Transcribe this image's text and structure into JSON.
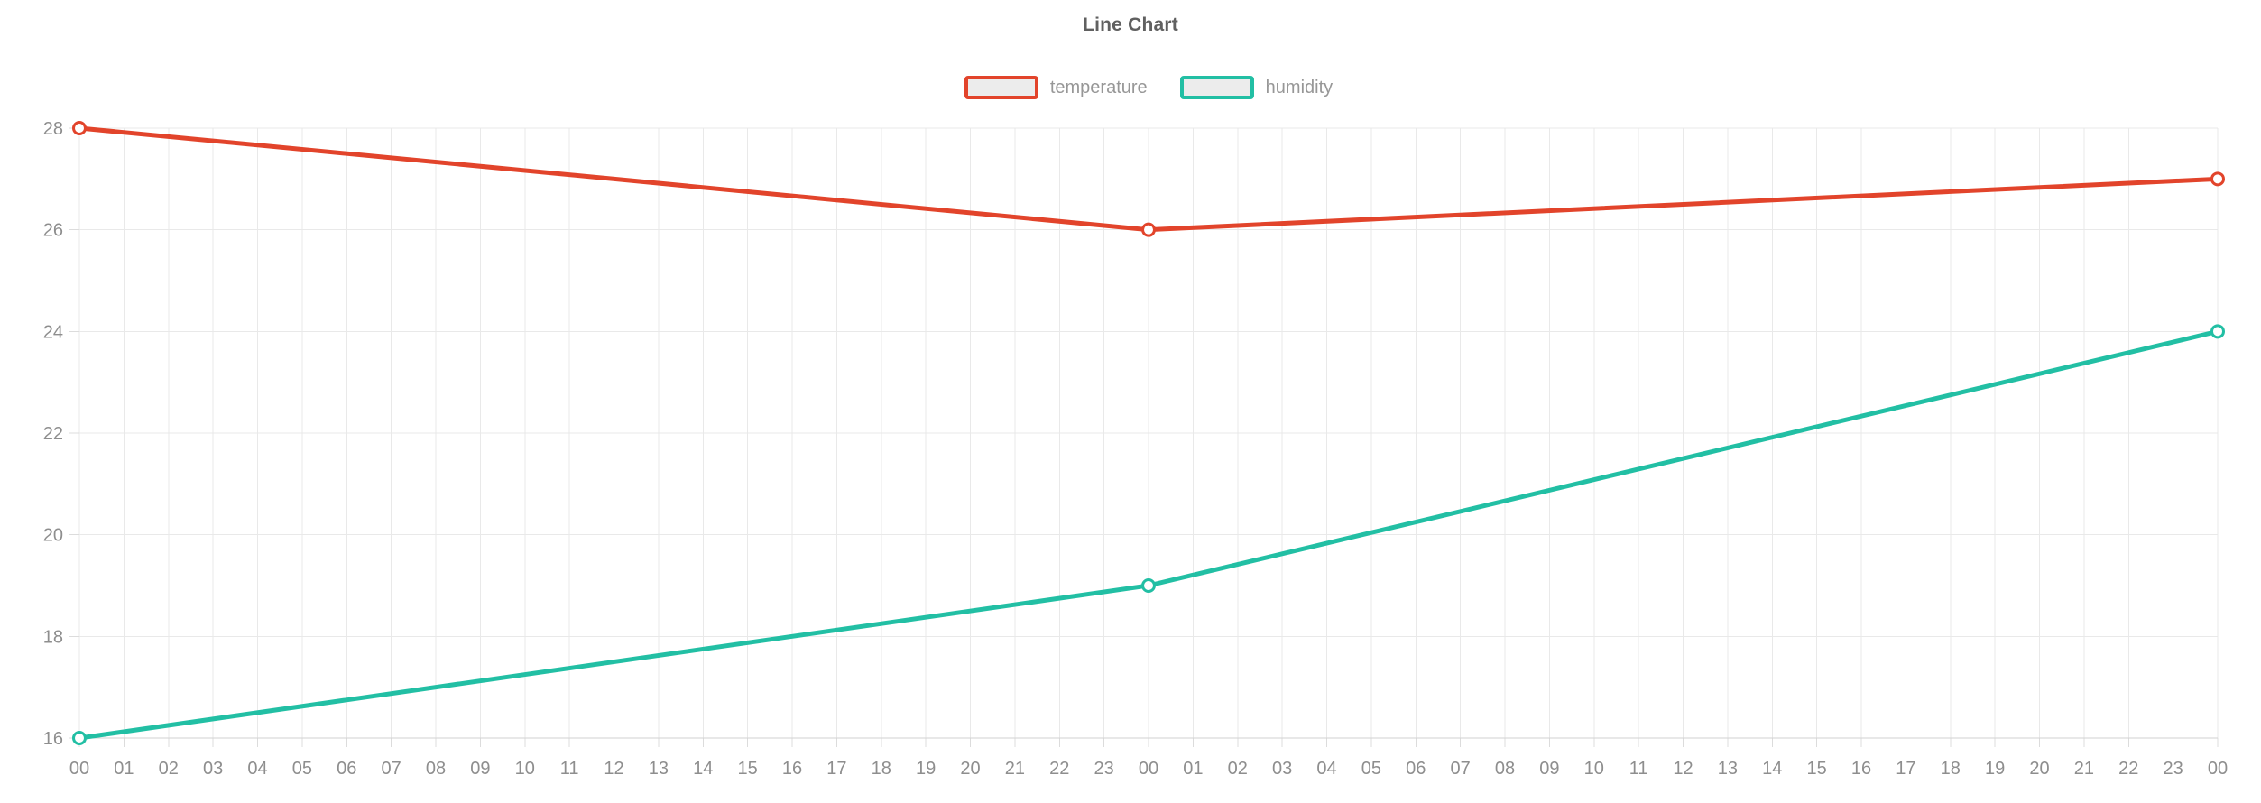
{
  "page": {
    "background": "#ffffff"
  },
  "title": "Line Chart",
  "legend": {
    "items": [
      {
        "label": "temperature",
        "color": "#e2442b"
      },
      {
        "label": "humidity",
        "color": "#22bfa4"
      }
    ]
  },
  "chart_data": {
    "type": "line",
    "title": "Line Chart",
    "x_labels": [
      "00",
      "01",
      "02",
      "03",
      "04",
      "05",
      "06",
      "07",
      "08",
      "09",
      "10",
      "11",
      "12",
      "13",
      "14",
      "15",
      "16",
      "17",
      "18",
      "19",
      "20",
      "21",
      "22",
      "23",
      "00",
      "01",
      "02",
      "03",
      "04",
      "05",
      "06",
      "07",
      "08",
      "09",
      "10",
      "11",
      "12",
      "13",
      "14",
      "15",
      "16",
      "17",
      "18",
      "19",
      "20",
      "21",
      "22",
      "23",
      "00"
    ],
    "y_ticks": [
      16,
      18,
      20,
      22,
      24,
      26,
      28
    ],
    "ylim": [
      16,
      28
    ],
    "grid": true,
    "legend_position": "top",
    "series": [
      {
        "name": "temperature",
        "color": "#e2442b",
        "x_indices": [
          0,
          24,
          48
        ],
        "values": [
          28,
          26,
          27
        ]
      },
      {
        "name": "humidity",
        "color": "#22bfa4",
        "x_indices": [
          0,
          24,
          48
        ],
        "values": [
          16,
          19,
          24
        ]
      }
    ],
    "colors": {
      "grid": "#e9e9e9",
      "axis": "#d2d2d2",
      "tick": "#dcdcdc",
      "label": "#8e8e8e",
      "title": "#606060",
      "legend_fill": "#ececec"
    }
  }
}
